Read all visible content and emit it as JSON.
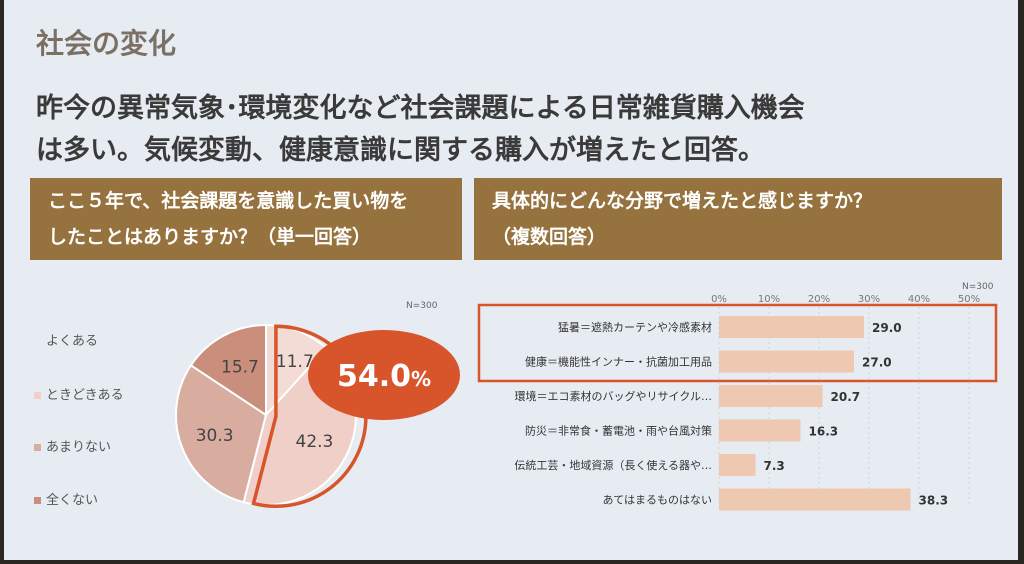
{
  "slide": {
    "title": "社会の変化",
    "subtitle_line1": "昨今の異常気象･環境変化など社会課題による日常雑貨購入機会",
    "subtitle_line2": "は多い。気候変動、健康意識に関する購入が増えたと回答。"
  },
  "left_panel": {
    "question_line1": "ここ５年で、社会課題を意識した買い物を",
    "question_line2": "したことはありますか？（単一回答）",
    "n_label": "N=300",
    "highlight_label": "54.0%",
    "highlight_number": "54.0",
    "highlight_unit": "%"
  },
  "right_panel": {
    "question_line1": "具体的にどんな分野で増えたと感じますか？",
    "question_line2": "（複数回答）",
    "n_label": "N=300"
  },
  "colors": {
    "header": "#96723e",
    "pie_light": "#f4dcd6",
    "pie_mid": "#efcfc7",
    "pie_dark": "#d8ac9e",
    "pie_darker": "#c98f7c",
    "highlight": "#d8542b",
    "bar": "#efc8b2"
  },
  "chart_data": [
    {
      "type": "pie",
      "title": "ここ５年で、社会課題を意識した買い物をしたことはありますか？（単一回答）",
      "labels": [
        "よくある",
        "ときどきある",
        "あまりない",
        "全くない"
      ],
      "values": [
        11.7,
        42.3,
        30.3,
        15.7
      ],
      "value_labels": [
        "11.7",
        "42.3",
        "30.3",
        "15.7"
      ],
      "annotation": "54.0%"
    },
    {
      "type": "bar",
      "orientation": "horizontal",
      "title": "具体的にどんな分野で増えたと感じますか？（複数回答）",
      "categories": [
        "猛暑＝遮熱カーテンや冷感素材",
        "健康＝機能性インナー・抗菌加工用品",
        "環境＝エコ素材のバッグやリサイクル…",
        "防災＝非常食・蓄電池・雨や台風対策",
        "伝統工芸・地域資源（長く使える器や…",
        "あてはまるものはない"
      ],
      "values": [
        29.0,
        27.0,
        20.7,
        16.3,
        7.3,
        38.3
      ],
      "value_labels": [
        "29.0",
        "27.0",
        "20.7",
        "16.3",
        "7.3",
        "38.3"
      ],
      "xlim": [
        0,
        50
      ],
      "xticks": [
        "0%",
        "10%",
        "20%",
        "30%",
        "40%",
        "50%"
      ],
      "highlighted": [
        0,
        1
      ]
    }
  ]
}
